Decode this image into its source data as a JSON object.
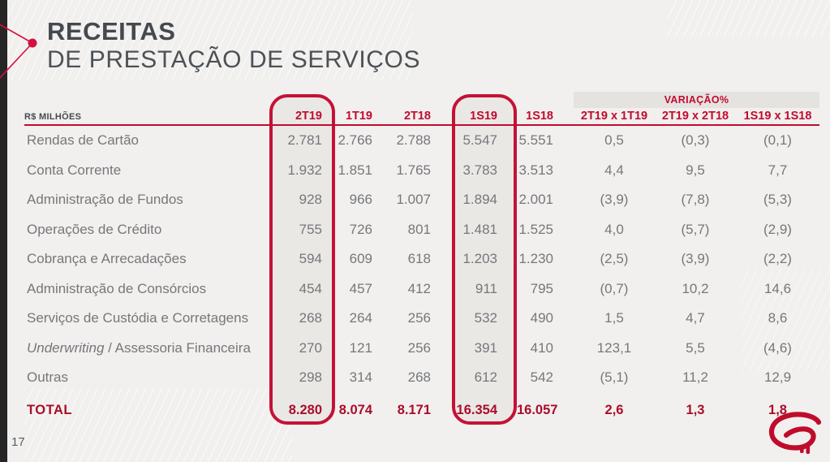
{
  "slide": {
    "title_line1": "RECEITAS",
    "title_line2": "DE PRESTAÇÃO DE SERVIÇOS",
    "page_number": "17",
    "logo_icon": "bradesco-logo",
    "decoration_icon": "arrow-bullet"
  },
  "colors": {
    "accent_red": "#C20B2F",
    "highlight_border": "#C51136",
    "total_red": "#A90E2B",
    "title_gray": "#45494E",
    "body_gray": "#76777B",
    "background": "#F1F0EE",
    "highlight_fill": "#EAE8E5",
    "band_fill": "#E5E3E0"
  },
  "table": {
    "unit_label": "R$ MILHÕES",
    "variation_group_label": "VARIAÇÃO%",
    "columns": [
      "2T19",
      "1T19",
      "2T18",
      "1S19",
      "1S18",
      "2T19 x 1T19",
      "2T19 x 2T18",
      "1S19 x 1S18"
    ],
    "highlighted_columns": [
      "2T19",
      "1S19"
    ],
    "rows": [
      {
        "label": "Rendas de Cartão",
        "values": [
          "2.781",
          "2.766",
          "2.788",
          "5.547",
          "5.551",
          "0,5",
          "(0,3)",
          "(0,1)"
        ]
      },
      {
        "label": "Conta Corrente",
        "values": [
          "1.932",
          "1.851",
          "1.765",
          "3.783",
          "3.513",
          "4,4",
          "9,5",
          "7,7"
        ]
      },
      {
        "label": "Administração de Fundos",
        "values": [
          "928",
          "966",
          "1.007",
          "1.894",
          "2.001",
          "(3,9)",
          "(7,8)",
          "(5,3)"
        ]
      },
      {
        "label": "Operações de Crédito",
        "values": [
          "755",
          "726",
          "801",
          "1.481",
          "1.525",
          "4,0",
          "(5,7)",
          "(2,9)"
        ]
      },
      {
        "label": "Cobrança e Arrecadações",
        "values": [
          "594",
          "609",
          "618",
          "1.203",
          "1.230",
          "(2,5)",
          "(3,9)",
          "(2,2)"
        ]
      },
      {
        "label": "Administração de Consórcios",
        "values": [
          "454",
          "457",
          "412",
          "911",
          "795",
          "(0,7)",
          "10,2",
          "14,6"
        ]
      },
      {
        "label": "Serviços de Custódia e Corretagens",
        "values": [
          "268",
          "264",
          "256",
          "532",
          "490",
          "1,5",
          "4,7",
          "8,6"
        ]
      },
      {
        "label": "Underwriting / Assessoria Financeira",
        "label_parts": [
          {
            "text": "Underwriting",
            "italic": true
          },
          {
            "text": " / Assessoria Financeira",
            "italic": false
          }
        ],
        "values": [
          "270",
          "121",
          "256",
          "391",
          "410",
          "123,1",
          "5,5",
          "(4,6)"
        ]
      },
      {
        "label": "Outras",
        "values": [
          "298",
          "314",
          "268",
          "612",
          "542",
          "(5,1)",
          "11,2",
          "12,9"
        ]
      }
    ],
    "total_row": {
      "label": "TOTAL",
      "values": [
        "8.280",
        "8.074",
        "8.171",
        "16.354",
        "16.057",
        "2,6",
        "1,3",
        "1,8"
      ]
    }
  }
}
